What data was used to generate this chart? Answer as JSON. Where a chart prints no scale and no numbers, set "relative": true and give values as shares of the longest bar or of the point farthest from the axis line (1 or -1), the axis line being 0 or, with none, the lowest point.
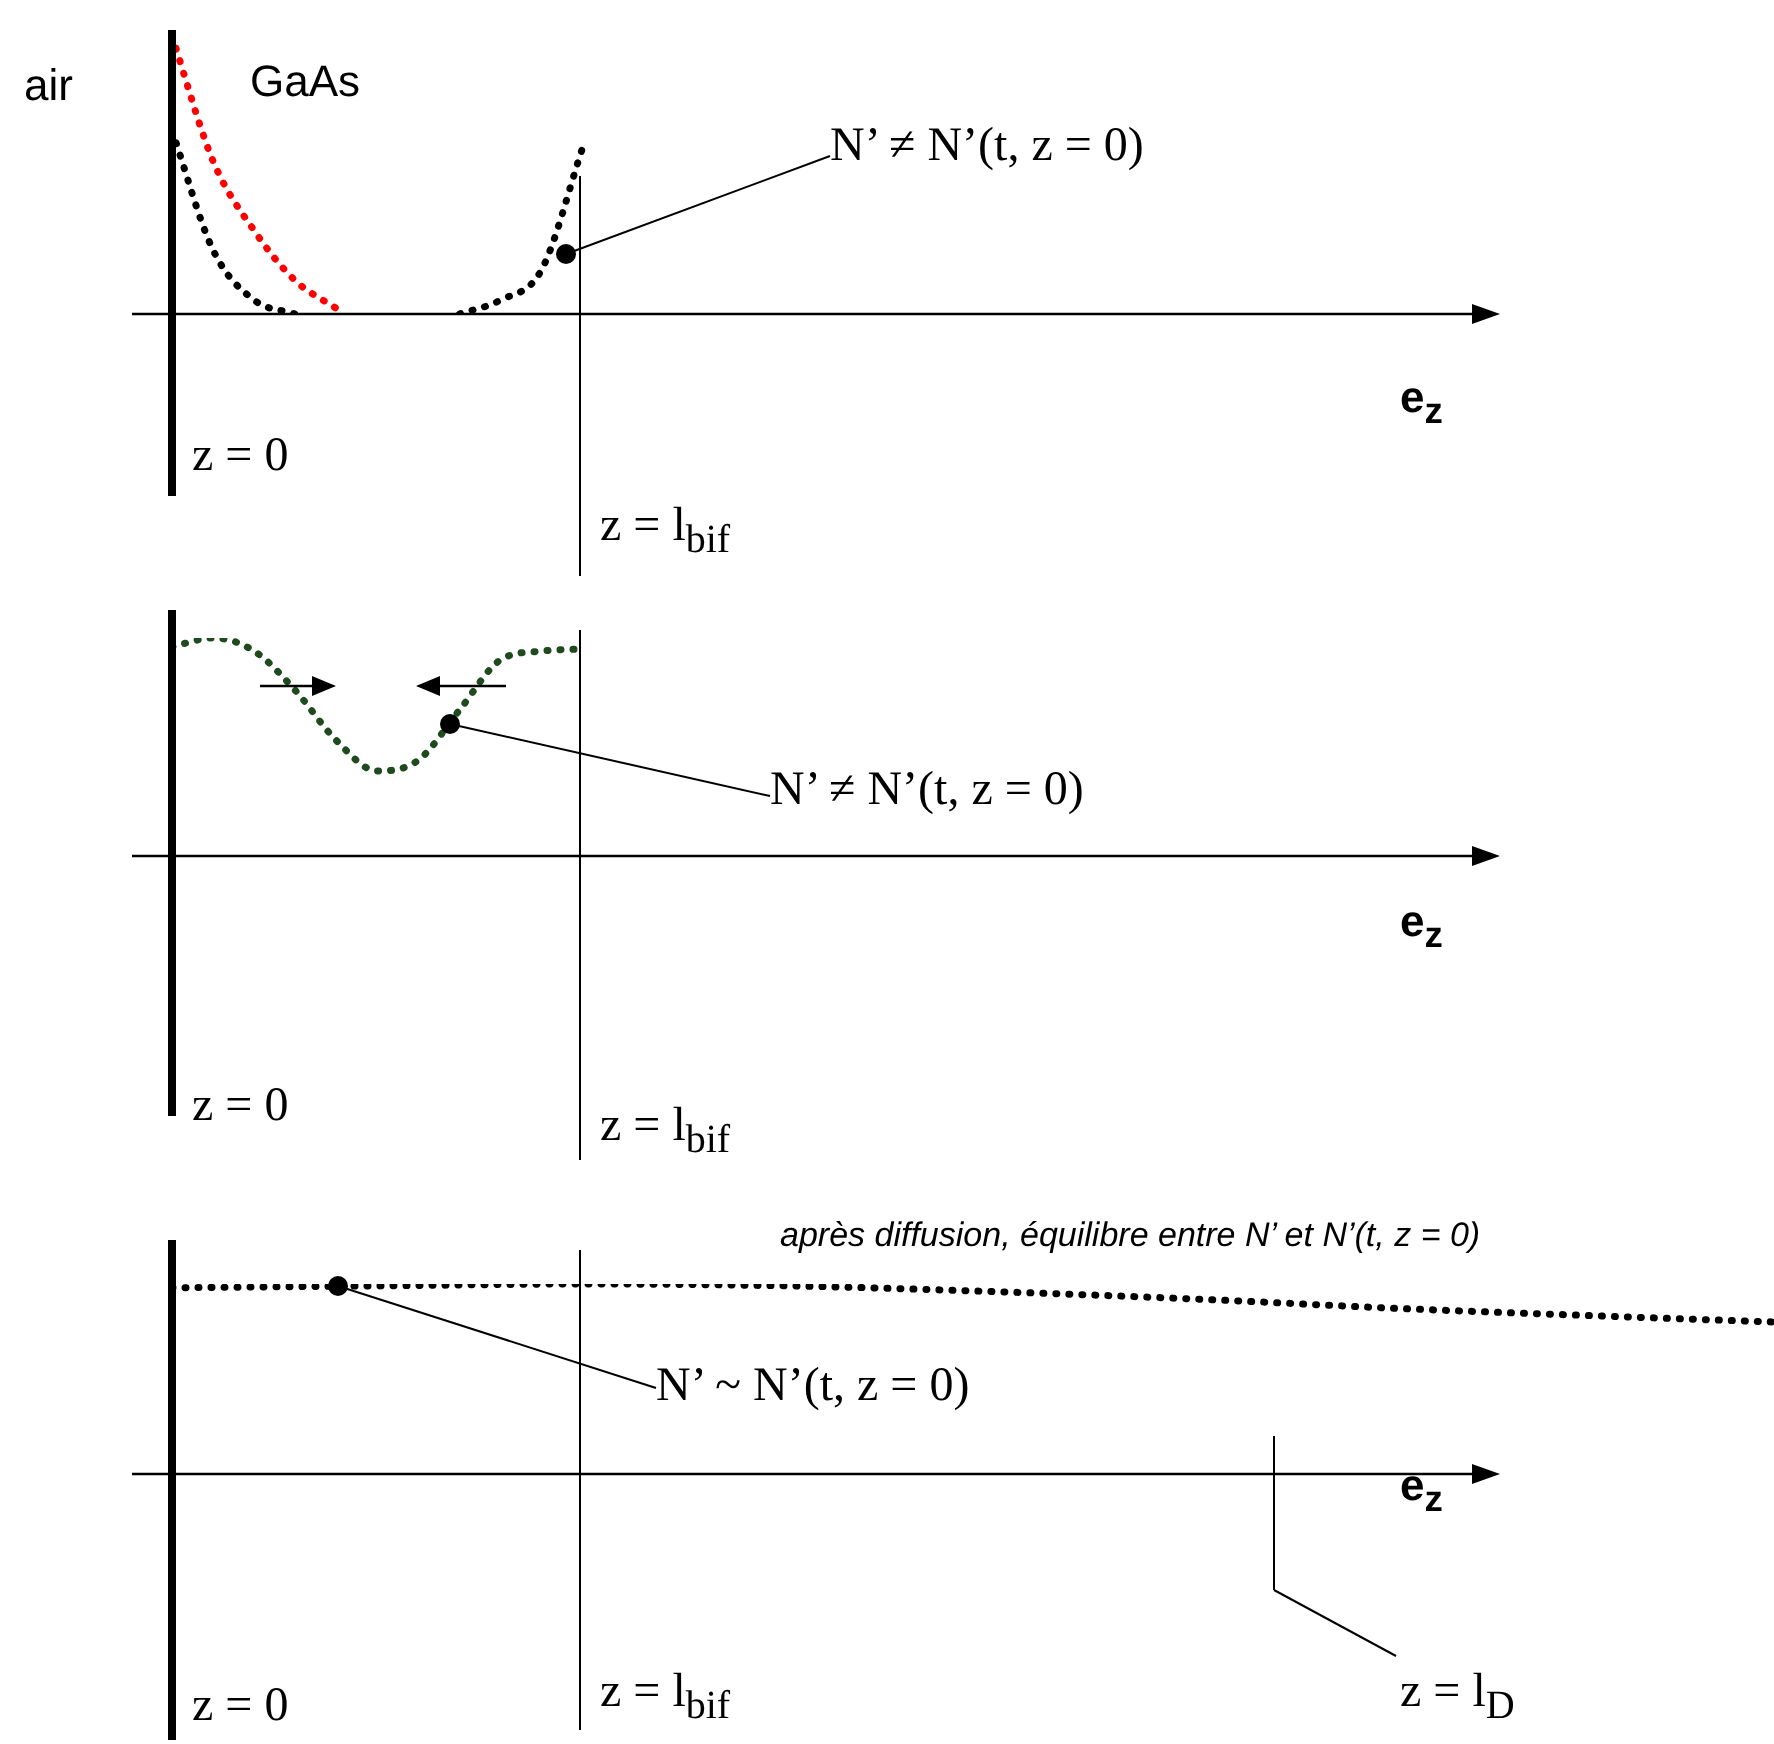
{
  "chart_data": [
    {
      "type": "line",
      "relative": true,
      "line_style": "dotted",
      "marker": "none",
      "xlabel": "e$_{z}$",
      "categories": [
        null,
        null,
        null,
        null,
        null,
        null,
        null,
        null,
        null,
        null,
        null,
        null,
        null,
        null,
        null,
        null,
        null,
        null,
        null,
        null,
        null,
        null,
        null,
        null,
        null,
        null,
        null,
        null,
        null,
        null,
        null,
        null,
        null,
        null,
        null,
        null,
        null,
        null,
        null,
        null
      ],
      "series": [
        {
          "color": "#000000",
          "values": [
            0.66,
            0.23,
            0.05,
            0,
            null,
            null,
            null,
            null,
            null,
            null,
            null,
            null,
            null,
            null,
            null,
            null,
            null,
            null,
            null,
            null,
            null,
            null,
            null,
            null,
            null,
            null,
            null,
            null,
            null,
            null,
            null,
            null,
            null,
            null,
            null,
            null,
            null,
            null,
            null,
            null
          ]
        },
        {
          "color": "#ff0000",
          "values": [
            1,
            0.55,
            0.3,
            0.12,
            0.02,
            null,
            null,
            null,
            null,
            null,
            null,
            null,
            null,
            null,
            null,
            null,
            null,
            null,
            null,
            null,
            null,
            null,
            null,
            null,
            null,
            null,
            null,
            null,
            null,
            null,
            null,
            null,
            null,
            null,
            null,
            null,
            null,
            null,
            null,
            null
          ]
        },
        {
          "color": "#000000",
          "values": [
            null,
            null,
            null,
            null,
            null,
            null,
            null,
            0,
            0.05,
            0.16,
            0.6,
            null,
            null,
            null,
            null,
            null,
            null,
            null,
            null,
            null,
            null,
            null,
            null,
            null,
            null,
            null,
            null,
            null,
            null,
            null,
            null,
            null,
            null,
            null,
            null,
            null,
            null,
            null,
            null,
            null
          ]
        }
      ],
      "annotations": [
        "air",
        "GaAs",
        "N’ ≠ N’(t, z = 0)",
        "z = 0",
        "z = l$_{bif}$"
      ]
    },
    {
      "type": "line",
      "relative": true,
      "line_style": "dotted",
      "marker": "none",
      "xlabel": "e$_{z}$",
      "categories": [
        null,
        null,
        null,
        null,
        null,
        null,
        null,
        null,
        null,
        null,
        null,
        null,
        null,
        null,
        null,
        null,
        null,
        null,
        null,
        null,
        null,
        null,
        null,
        null,
        null,
        null,
        null,
        null,
        null,
        null,
        null,
        null,
        null,
        null,
        null,
        null,
        null,
        null,
        null,
        null
      ],
      "series": [
        {
          "color": "#1e4a1e",
          "values": [
            0.96,
            1,
            0.94,
            0.76,
            0.53,
            0.39,
            0.44,
            0.67,
            0.9,
            0.94,
            0.95,
            null,
            null,
            null,
            null,
            null,
            null,
            null,
            null,
            null,
            null,
            null,
            null,
            null,
            null,
            null,
            null,
            null,
            null,
            null,
            null,
            null,
            null,
            null,
            null,
            null,
            null,
            null,
            null,
            null
          ]
        }
      ],
      "annotations": [
        "N’ ≠ N’(t, z = 0)",
        "z = 0",
        "z = l$_{bif}$"
      ]
    },
    {
      "type": "line",
      "relative": true,
      "line_style": "dotted",
      "marker": "none",
      "xlabel": "e$_{z}$",
      "categories": [
        null,
        null,
        null,
        null,
        null,
        null,
        null,
        null,
        null,
        null,
        null,
        null,
        null,
        null,
        null,
        null,
        null,
        null,
        null,
        null,
        null,
        null,
        null,
        null,
        null,
        null,
        null,
        null,
        null,
        null,
        null,
        null,
        null,
        null,
        null,
        null,
        null,
        null,
        null,
        null
      ],
      "series": [
        {
          "color": "#000000",
          "values": [
            0.98,
            null,
            null,
            null,
            null,
            0.99,
            null,
            null,
            null,
            null,
            1,
            null,
            null,
            null,
            null,
            0.99,
            null,
            null,
            null,
            null,
            0.96,
            null,
            null,
            null,
            null,
            0.92,
            null,
            null,
            null,
            null,
            0.87,
            null,
            null,
            null,
            null,
            0.83,
            null,
            null,
            null,
            0.8
          ]
        }
      ],
      "annotations": [
        "après diffusion, équilibre entre N’ et N’(t, z = 0)",
        "N’ ~ N’(t, z = 0)",
        "z = 0",
        "z = l$_{bif}$",
        "z = l$_{D}$"
      ]
    }
  ]
}
